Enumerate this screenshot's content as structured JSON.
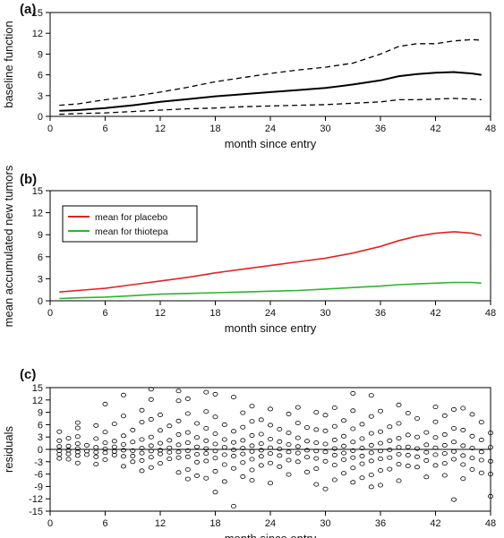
{
  "chart_data": [
    {
      "type": "line",
      "panel_label": "(a)",
      "xlabel": "month since entry",
      "ylabel": "baseline function",
      "xlim": [
        0,
        48
      ],
      "ylim": [
        0,
        15
      ],
      "xticks": [
        0,
        6,
        12,
        18,
        24,
        30,
        36,
        42,
        48
      ],
      "yticks": [
        0,
        3,
        6,
        9,
        12,
        15
      ],
      "grid": false,
      "x": [
        1,
        3,
        6,
        9,
        12,
        15,
        18,
        21,
        24,
        27,
        30,
        33,
        36,
        38,
        40,
        42,
        44,
        46,
        47
      ],
      "series": [
        {
          "style": "solid",
          "color": "#000000",
          "values": [
            0.8,
            0.9,
            1.2,
            1.6,
            2.1,
            2.5,
            2.9,
            3.2,
            3.5,
            3.8,
            4.1,
            4.6,
            5.2,
            5.8,
            6.1,
            6.3,
            6.4,
            6.2,
            6.0
          ]
        },
        {
          "style": "dashed",
          "color": "#000000",
          "values": [
            1.6,
            1.8,
            2.4,
            2.9,
            3.5,
            4.2,
            5.0,
            5.6,
            6.2,
            6.7,
            7.1,
            7.7,
            9.0,
            10.1,
            10.5,
            10.5,
            10.9,
            11.1,
            11.0
          ]
        },
        {
          "style": "dashed",
          "color": "#000000",
          "values": [
            0.3,
            0.4,
            0.5,
            0.7,
            0.9,
            1.1,
            1.2,
            1.4,
            1.5,
            1.6,
            1.7,
            1.9,
            2.1,
            2.4,
            2.4,
            2.5,
            2.6,
            2.5,
            2.4
          ]
        }
      ]
    },
    {
      "type": "line",
      "panel_label": "(b)",
      "xlabel": "month since entry",
      "ylabel": "mean accumulated new tumors",
      "xlim": [
        0,
        48
      ],
      "ylim": [
        0,
        15
      ],
      "xticks": [
        0,
        6,
        12,
        18,
        24,
        30,
        36,
        42,
        48
      ],
      "yticks": [
        0,
        3,
        6,
        9,
        12,
        15
      ],
      "grid": false,
      "legend_position": "upper-left",
      "x": [
        1,
        3,
        6,
        9,
        12,
        15,
        18,
        21,
        24,
        27,
        30,
        33,
        36,
        38,
        40,
        42,
        44,
        46,
        47
      ],
      "series": [
        {
          "name": "mean for placebo",
          "color": "#e02424",
          "values": [
            1.2,
            1.4,
            1.7,
            2.2,
            2.7,
            3.2,
            3.8,
            4.3,
            4.8,
            5.3,
            5.8,
            6.5,
            7.4,
            8.2,
            8.8,
            9.2,
            9.4,
            9.2,
            8.9
          ]
        },
        {
          "name": "mean for thiotepa",
          "color": "#2db52d",
          "values": [
            0.3,
            0.4,
            0.5,
            0.7,
            0.9,
            1.0,
            1.1,
            1.2,
            1.3,
            1.4,
            1.6,
            1.8,
            2.0,
            2.2,
            2.3,
            2.4,
            2.5,
            2.5,
            2.4
          ]
        }
      ]
    },
    {
      "type": "scatter",
      "panel_label": "(c)",
      "xlabel": "month since entry",
      "ylabel": "residuals",
      "xlim": [
        0,
        48
      ],
      "ylim": [
        -15,
        15
      ],
      "xticks": [
        0,
        6,
        12,
        18,
        24,
        30,
        36,
        42,
        48
      ],
      "yticks": [
        -15,
        -12,
        -9,
        -6,
        -3,
        0,
        3,
        6,
        9,
        12,
        15
      ],
      "grid": false,
      "reference_line_y": 0,
      "marker": "open-circle",
      "points": [
        [
          1,
          4.3
        ],
        [
          1,
          2.1
        ],
        [
          1,
          0.7
        ],
        [
          1,
          -0.3
        ],
        [
          1,
          -1.2
        ],
        [
          1,
          -2.2
        ],
        [
          2,
          2.7
        ],
        [
          2,
          0.8
        ],
        [
          2,
          -0.2
        ],
        [
          2,
          -1.1
        ],
        [
          2,
          -2.4
        ],
        [
          3,
          6.5
        ],
        [
          3,
          5.2
        ],
        [
          3,
          3.1
        ],
        [
          3,
          1.4
        ],
        [
          3,
          0.2
        ],
        [
          3,
          -0.6
        ],
        [
          3,
          -1.5
        ],
        [
          3,
          -3.3
        ],
        [
          4,
          1.0
        ],
        [
          4,
          -0.4
        ],
        [
          4,
          -1.3
        ],
        [
          5,
          5.8
        ],
        [
          5,
          2.6
        ],
        [
          5,
          0.5
        ],
        [
          5,
          -0.7
        ],
        [
          5,
          -1.8
        ],
        [
          5,
          -3.6
        ],
        [
          6,
          11.0
        ],
        [
          6,
          4.2
        ],
        [
          6,
          1.6
        ],
        [
          6,
          0.1
        ],
        [
          6,
          -0.8
        ],
        [
          6,
          -2.5
        ],
        [
          7,
          6.2
        ],
        [
          7,
          2.0
        ],
        [
          7,
          0.6
        ],
        [
          7,
          -0.5
        ],
        [
          7,
          -1.4
        ],
        [
          8,
          13.2
        ],
        [
          8,
          8.1
        ],
        [
          8,
          3.3
        ],
        [
          8,
          1.2
        ],
        [
          8,
          -0.2
        ],
        [
          8,
          -1.7
        ],
        [
          8,
          -4.1
        ],
        [
          9,
          4.7
        ],
        [
          9,
          1.8
        ],
        [
          9,
          -0.3
        ],
        [
          9,
          -1.6
        ],
        [
          9,
          -3.0
        ],
        [
          10,
          9.5
        ],
        [
          10,
          6.6
        ],
        [
          10,
          2.4
        ],
        [
          10,
          0.3
        ],
        [
          10,
          -0.9
        ],
        [
          10,
          -2.7
        ],
        [
          10,
          -5.2
        ],
        [
          11,
          14.6
        ],
        [
          11,
          12.1
        ],
        [
          11,
          7.3
        ],
        [
          11,
          3.0
        ],
        [
          11,
          0.9
        ],
        [
          11,
          -0.4
        ],
        [
          11,
          -1.9
        ],
        [
          11,
          -4.4
        ],
        [
          12,
          8.4
        ],
        [
          12,
          4.6
        ],
        [
          12,
          1.5
        ],
        [
          12,
          -0.2
        ],
        [
          12,
          -1.1
        ],
        [
          12,
          -3.4
        ],
        [
          13,
          5.7
        ],
        [
          13,
          2.2
        ],
        [
          13,
          0.4
        ],
        [
          13,
          -0.7
        ],
        [
          13,
          -2.3
        ],
        [
          14,
          14.2
        ],
        [
          14,
          11.8
        ],
        [
          14,
          6.9
        ],
        [
          14,
          3.6
        ],
        [
          14,
          1.1
        ],
        [
          14,
          -0.6
        ],
        [
          14,
          -2.0
        ],
        [
          14,
          -5.6
        ],
        [
          15,
          12.3
        ],
        [
          15,
          8.7
        ],
        [
          15,
          4.1
        ],
        [
          15,
          1.6
        ],
        [
          15,
          -0.3
        ],
        [
          15,
          -1.8
        ],
        [
          15,
          -4.9
        ],
        [
          15,
          -7.2
        ],
        [
          16,
          6.3
        ],
        [
          16,
          2.9
        ],
        [
          16,
          0.6
        ],
        [
          16,
          -1.2
        ],
        [
          16,
          -3.1
        ],
        [
          16,
          -6.4
        ],
        [
          17,
          13.9
        ],
        [
          17,
          9.2
        ],
        [
          17,
          5.1
        ],
        [
          17,
          2.1
        ],
        [
          17,
          0.2
        ],
        [
          17,
          -1.0
        ],
        [
          17,
          -2.8
        ],
        [
          17,
          -7.0
        ],
        [
          18,
          13.4
        ],
        [
          18,
          7.9
        ],
        [
          18,
          3.8
        ],
        [
          18,
          1.3
        ],
        [
          18,
          -0.4
        ],
        [
          18,
          -2.1
        ],
        [
          18,
          -5.3
        ],
        [
          18,
          -10.4
        ],
        [
          19,
          6.0
        ],
        [
          19,
          2.4
        ],
        [
          19,
          0.5
        ],
        [
          19,
          -1.3
        ],
        [
          19,
          -3.7
        ],
        [
          19,
          -7.8
        ],
        [
          20,
          12.7
        ],
        [
          20,
          4.4
        ],
        [
          20,
          1.7
        ],
        [
          20,
          -0.1
        ],
        [
          20,
          -1.6
        ],
        [
          20,
          -4.6
        ],
        [
          20,
          -13.8
        ],
        [
          21,
          8.9
        ],
        [
          21,
          5.4
        ],
        [
          21,
          2.2
        ],
        [
          21,
          0.3
        ],
        [
          21,
          -1.1
        ],
        [
          21,
          -3.2
        ],
        [
          21,
          -6.6
        ],
        [
          22,
          10.5
        ],
        [
          22,
          6.8
        ],
        [
          22,
          3.4
        ],
        [
          22,
          0.9
        ],
        [
          22,
          -0.5
        ],
        [
          22,
          -2.4
        ],
        [
          22,
          -5.0
        ],
        [
          22,
          -7.5
        ],
        [
          23,
          7.2
        ],
        [
          23,
          3.7
        ],
        [
          23,
          1.4
        ],
        [
          23,
          -0.2
        ],
        [
          23,
          -1.7
        ],
        [
          23,
          -3.9
        ],
        [
          24,
          9.8
        ],
        [
          24,
          5.9
        ],
        [
          24,
          2.5
        ],
        [
          24,
          0.4
        ],
        [
          24,
          -1.0
        ],
        [
          24,
          -3.3
        ],
        [
          24,
          -8.2
        ],
        [
          25,
          4.9
        ],
        [
          25,
          1.9
        ],
        [
          25,
          0.1
        ],
        [
          25,
          -1.5
        ],
        [
          25,
          -4.2
        ],
        [
          26,
          8.6
        ],
        [
          26,
          4.0
        ],
        [
          26,
          1.2
        ],
        [
          26,
          -0.6
        ],
        [
          26,
          -2.6
        ],
        [
          26,
          -6.1
        ],
        [
          27,
          10.2
        ],
        [
          27,
          6.4
        ],
        [
          27,
          2.8
        ],
        [
          27,
          0.7
        ],
        [
          27,
          -0.9
        ],
        [
          27,
          -3.0
        ],
        [
          28,
          5.3
        ],
        [
          28,
          2.0
        ],
        [
          28,
          -0.2
        ],
        [
          28,
          -1.9
        ],
        [
          28,
          -5.5
        ],
        [
          29,
          9.0
        ],
        [
          29,
          4.8
        ],
        [
          29,
          1.6
        ],
        [
          29,
          -0.4
        ],
        [
          29,
          -2.2
        ],
        [
          29,
          -4.7
        ],
        [
          29,
          -8.5
        ],
        [
          30,
          8.3
        ],
        [
          30,
          4.5
        ],
        [
          30,
          1.3
        ],
        [
          30,
          -0.6
        ],
        [
          30,
          -2.9
        ],
        [
          30,
          -9.6
        ],
        [
          31,
          10.1
        ],
        [
          31,
          5.6
        ],
        [
          31,
          2.3
        ],
        [
          31,
          0.2
        ],
        [
          31,
          -1.4
        ],
        [
          31,
          -3.8
        ],
        [
          31,
          -7.4
        ],
        [
          32,
          7.0
        ],
        [
          32,
          3.2
        ],
        [
          32,
          0.8
        ],
        [
          32,
          -0.9
        ],
        [
          32,
          -2.5
        ],
        [
          32,
          -5.8
        ],
        [
          33,
          13.6
        ],
        [
          33,
          9.4
        ],
        [
          33,
          5.0
        ],
        [
          33,
          1.8
        ],
        [
          33,
          -0.3
        ],
        [
          33,
          -2.0
        ],
        [
          33,
          -4.5
        ],
        [
          33,
          -8.0
        ],
        [
          34,
          6.1
        ],
        [
          34,
          2.6
        ],
        [
          34,
          0.3
        ],
        [
          34,
          -1.6
        ],
        [
          34,
          -3.5
        ],
        [
          34,
          -6.9
        ],
        [
          35,
          13.1
        ],
        [
          35,
          8.0
        ],
        [
          35,
          3.9
        ],
        [
          35,
          1.0
        ],
        [
          35,
          -0.8
        ],
        [
          35,
          -2.8
        ],
        [
          35,
          -6.2
        ],
        [
          35,
          -9.1
        ],
        [
          36,
          9.3
        ],
        [
          36,
          4.3
        ],
        [
          36,
          1.5
        ],
        [
          36,
          -0.4
        ],
        [
          36,
          -2.3
        ],
        [
          36,
          -5.1
        ],
        [
          36,
          -8.7
        ],
        [
          37,
          5.5
        ],
        [
          37,
          2.1
        ],
        [
          37,
          -0.1
        ],
        [
          37,
          -2.0
        ],
        [
          37,
          -4.8
        ],
        [
          38,
          10.8
        ],
        [
          38,
          6.3
        ],
        [
          38,
          2.7
        ],
        [
          38,
          0.5
        ],
        [
          38,
          -1.2
        ],
        [
          38,
          -3.6
        ],
        [
          38,
          -7.6
        ],
        [
          39,
          8.8
        ],
        [
          39,
          3.5
        ],
        [
          39,
          0.6
        ],
        [
          39,
          -1.4
        ],
        [
          39,
          -4.0
        ],
        [
          40,
          7.5
        ],
        [
          40,
          3.0
        ],
        [
          40,
          0.2
        ],
        [
          40,
          -1.8
        ],
        [
          40,
          -4.3
        ],
        [
          41,
          4.1
        ],
        [
          41,
          1.1
        ],
        [
          41,
          -0.7
        ],
        [
          41,
          -2.7
        ],
        [
          41,
          -6.7
        ],
        [
          42,
          10.3
        ],
        [
          42,
          6.7
        ],
        [
          42,
          2.9
        ],
        [
          42,
          0.4
        ],
        [
          42,
          -1.3
        ],
        [
          42,
          -3.9
        ],
        [
          43,
          8.2
        ],
        [
          43,
          3.6
        ],
        [
          43,
          1.0
        ],
        [
          43,
          -1.0
        ],
        [
          43,
          -3.4
        ],
        [
          43,
          -6.3
        ],
        [
          44,
          9.7
        ],
        [
          44,
          5.1
        ],
        [
          44,
          1.8
        ],
        [
          44,
          -0.5
        ],
        [
          44,
          -2.4
        ],
        [
          44,
          -12.2
        ],
        [
          45,
          10.0
        ],
        [
          45,
          4.7
        ],
        [
          45,
          0.9
        ],
        [
          45,
          -1.5
        ],
        [
          45,
          -3.7
        ],
        [
          45,
          -7.1
        ],
        [
          46,
          8.5
        ],
        [
          46,
          3.2
        ],
        [
          46,
          0.3
        ],
        [
          46,
          -2.1
        ],
        [
          46,
          -4.9
        ],
        [
          47,
          6.6
        ],
        [
          47,
          2.3
        ],
        [
          47,
          -0.6
        ],
        [
          47,
          -2.6
        ],
        [
          47,
          -5.7
        ],
        [
          48,
          4.0
        ],
        [
          48,
          0.5
        ],
        [
          48,
          -2.9
        ],
        [
          48,
          -6.0
        ],
        [
          48,
          -11.4
        ]
      ]
    }
  ]
}
